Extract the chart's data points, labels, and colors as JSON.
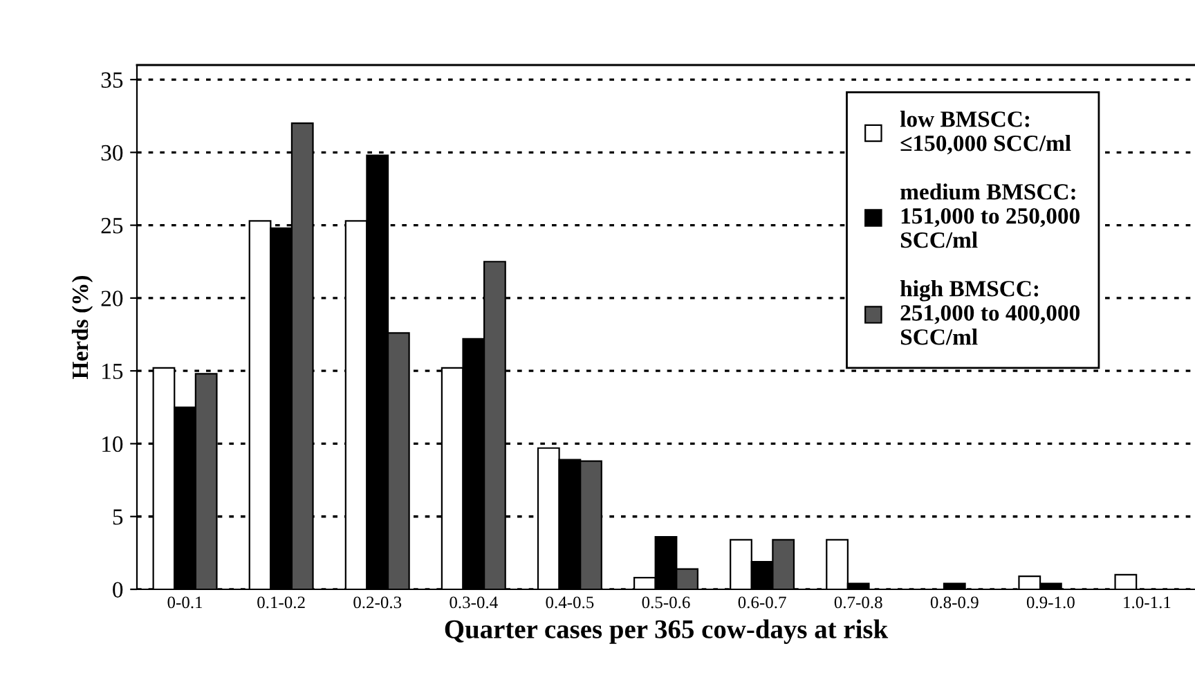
{
  "chart_data": {
    "type": "bar",
    "xlabel": "Quarter cases per 365 cow-days at risk",
    "ylabel": "Herds (%)",
    "categories": [
      "0-0.1",
      "0.1-0.2",
      "0.2-0.3",
      "0.3-0.4",
      "0.4-0.5",
      "0.5-0.6",
      "0.6-0.7",
      "0.7-0.8",
      "0.8-0.9",
      "0.9-1.0",
      "1.0-1.1"
    ],
    "series": [
      {
        "name": "low BMSCC:\n≤150,000 SCC/ml",
        "color": "#ffffff",
        "values": [
          15.2,
          25.3,
          25.3,
          15.2,
          9.7,
          0.8,
          3.4,
          3.4,
          null,
          0.9,
          1.0
        ]
      },
      {
        "name": "medium BMSCC:\n151,000 to 250,000\nSCC/ml",
        "color": "#000000",
        "values": [
          12.5,
          24.8,
          29.8,
          17.2,
          8.9,
          3.6,
          1.9,
          0.4,
          0.4,
          0.4,
          null
        ]
      },
      {
        "name": "high BMSCC:\n251,000 to 400,000\nSCC/ml",
        "color": "#555555",
        "values": [
          14.8,
          32.0,
          17.6,
          22.5,
          8.8,
          1.4,
          3.4,
          null,
          null,
          null,
          null
        ]
      }
    ],
    "ylim": [
      0,
      36
    ],
    "yticks": [
      0,
      5,
      10,
      15,
      20,
      25,
      30,
      35
    ],
    "grid": "y",
    "legend": "top right"
  }
}
